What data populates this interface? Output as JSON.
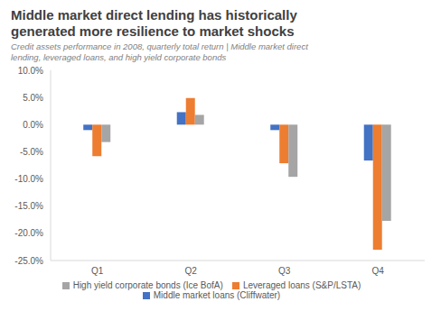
{
  "chart_data": {
    "type": "bar",
    "title": "Middle market direct lending has historically generated more resilience to market shocks",
    "subtitle": "Credit assets performance in 2008, quarterly total return | Middle market direct lending, leveraged loans, and high yield corporate bonds",
    "categories": [
      "Q1",
      "Q2",
      "Q3",
      "Q4"
    ],
    "series": [
      {
        "name": "Middle market loans (Cliffwater)",
        "color": "#4472c4",
        "values": [
          -1.0,
          2.3,
          -1.0,
          -6.6
        ]
      },
      {
        "name": "Leveraged loans (S&P/LSTA)",
        "color": "#ed7d31",
        "values": [
          -5.8,
          4.9,
          -7.1,
          -23.0
        ]
      },
      {
        "name": "High yield corporate bonds (Ice BofA)",
        "color": "#a5a5a5",
        "values": [
          -3.2,
          1.8,
          -9.6,
          -17.7
        ]
      }
    ],
    "ylim": [
      -25,
      10
    ],
    "yticks": [
      {
        "value": -25,
        "label": "-25.0%"
      },
      {
        "value": -20,
        "label": "-20.0%"
      },
      {
        "value": -15,
        "label": "-15.0%"
      },
      {
        "value": -10,
        "label": "-10.0%"
      },
      {
        "value": -5,
        "label": "-5.0%"
      },
      {
        "value": 0,
        "label": "0.0%"
      },
      {
        "value": 5,
        "label": "5.0%"
      },
      {
        "value": 10,
        "label": "10.0%"
      }
    ],
    "grid": false,
    "legend": "bottom"
  }
}
